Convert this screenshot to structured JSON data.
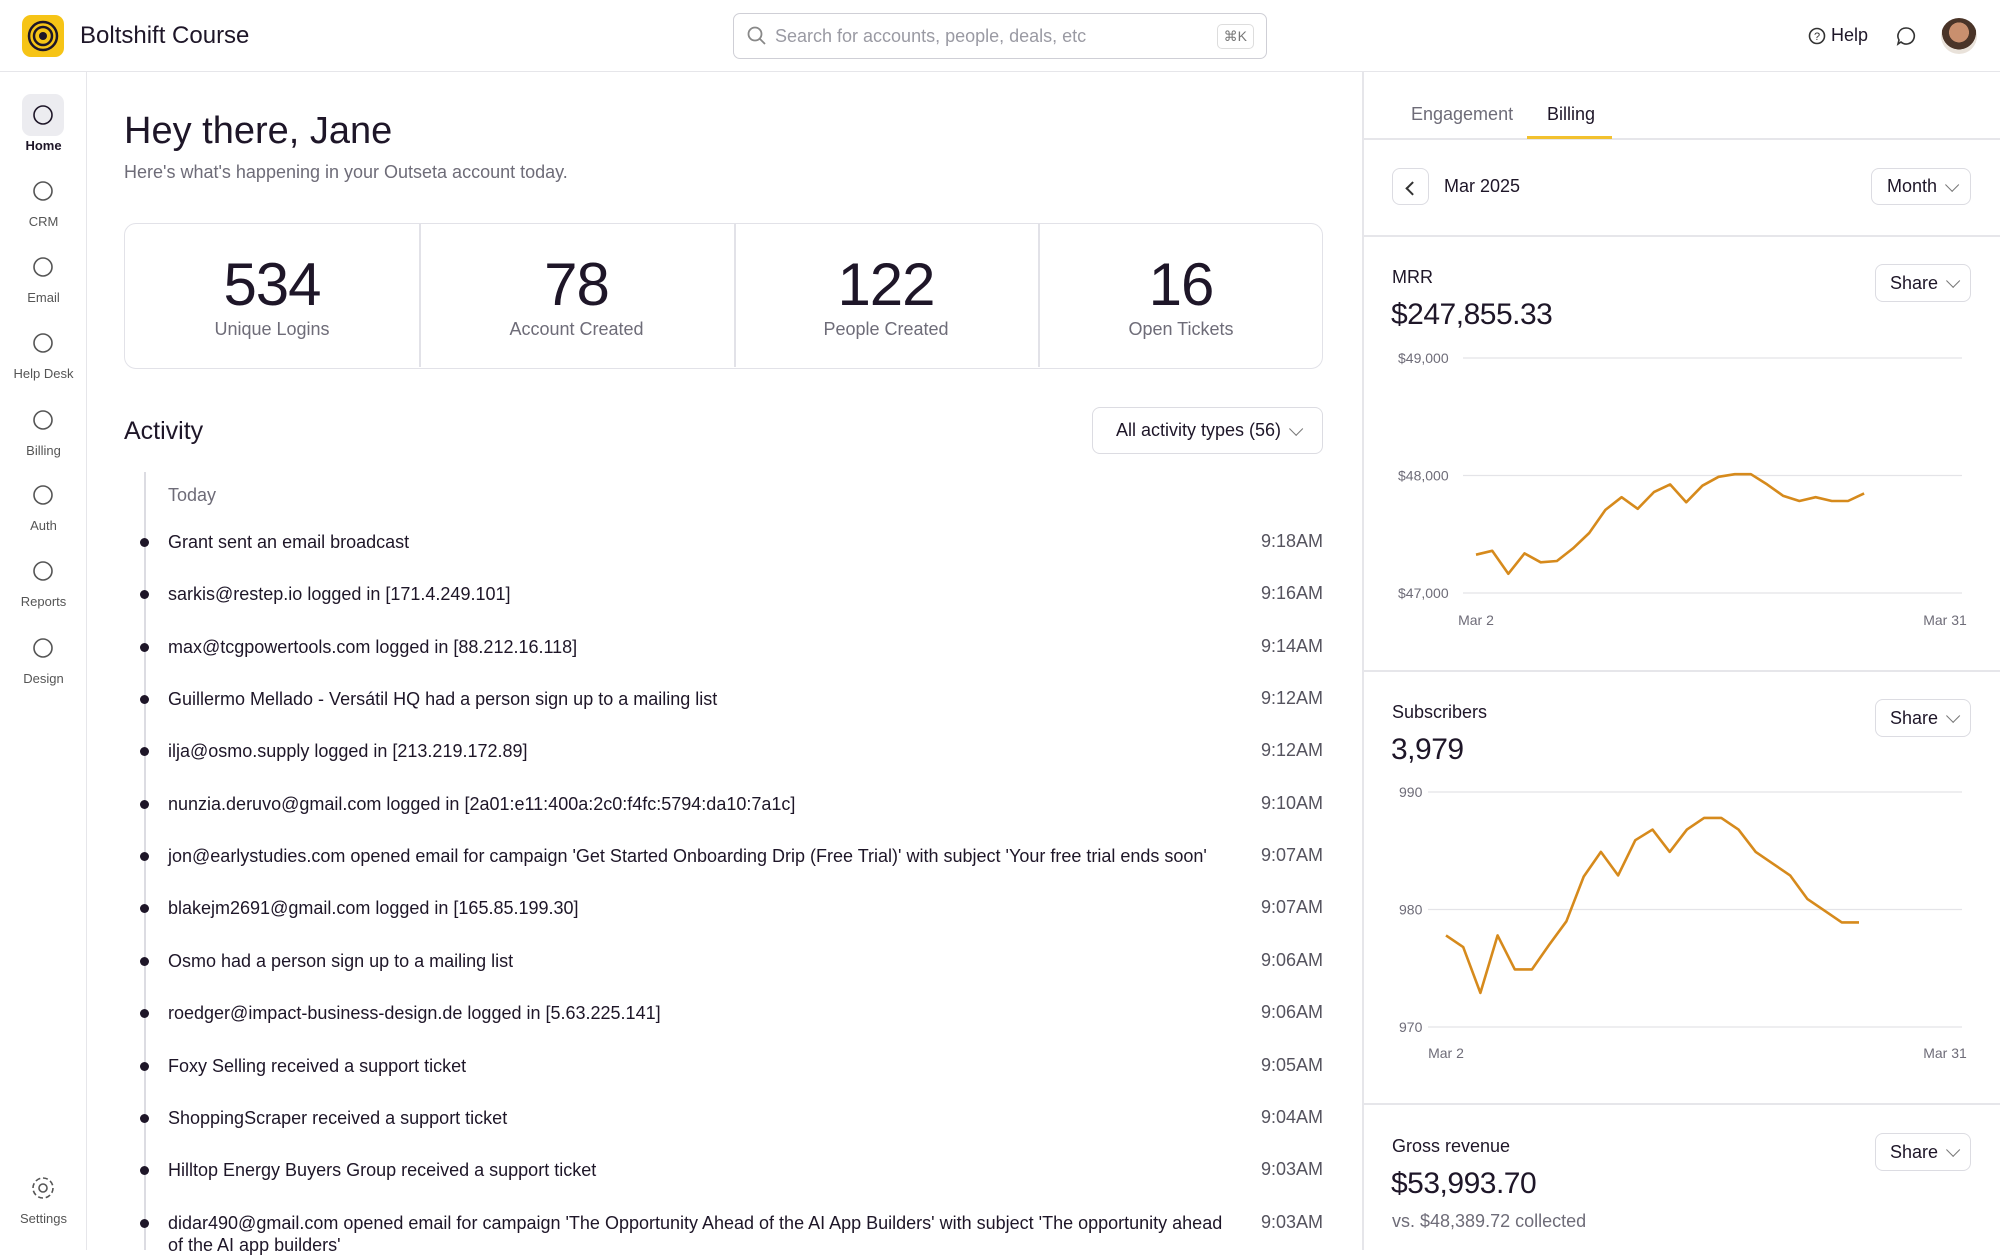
{
  "header": {
    "brand": "Boltshift Course",
    "search_placeholder": "Search for accounts, people, deals, etc",
    "shortcut": "⌘K",
    "help": "Help"
  },
  "nav": {
    "items": [
      "Home",
      "CRM",
      "Email",
      "Help Desk",
      "Billing",
      "Auth",
      "Reports",
      "Design"
    ],
    "settings": "Settings"
  },
  "greeting": {
    "title": "Hey there, Jane",
    "subtitle": "Here's what's happening in your Outseta account today."
  },
  "stats": [
    {
      "value": 534,
      "label": "Unique Logins"
    },
    {
      "value": 78,
      "label": "Account Created"
    },
    {
      "value": 122,
      "label": "People Created"
    },
    {
      "value": 16,
      "label": "Open Tickets"
    }
  ],
  "activity": {
    "title": "Activity",
    "filter": "All activity types (56)",
    "day": "Today",
    "items": [
      {
        "text": "Grant sent an email broadcast",
        "time": "9:18AM"
      },
      {
        "text": "sarkis@restep.io logged in [171.4.249.101]",
        "time": "9:16AM"
      },
      {
        "text": "max@tcgpowertools.com logged in [88.212.16.118]",
        "time": "9:14AM"
      },
      {
        "text": "Guillermo Mellado - Versátil HQ had a person sign up to a mailing list",
        "time": "9:12AM"
      },
      {
        "text": "ilja@osmo.supply logged in [213.219.172.89]",
        "time": "9:12AM"
      },
      {
        "text": "nunzia.deruvo@gmail.com logged in [2a01:e11:400a:2c0:f4fc:5794:da10:7a1c]",
        "time": "9:10AM"
      },
      {
        "text": "jon@earlystudies.com opened email for campaign 'Get Started Onboarding Drip (Free Trial)' with subject 'Your free trial ends soon'",
        "time": "9:07AM"
      },
      {
        "text": "blakejm2691@gmail.com logged in [165.85.199.30]",
        "time": "9:07AM"
      },
      {
        "text": "Osmo had a person sign up to a mailing list",
        "time": "9:06AM"
      },
      {
        "text": "roedger@impact-business-design.de logged in [5.63.225.141]",
        "time": "9:06AM"
      },
      {
        "text": "Foxy Selling received a support ticket",
        "time": "9:05AM"
      },
      {
        "text": "ShoppingScraper received a support ticket",
        "time": "9:04AM"
      },
      {
        "text": "Hilltop Energy Buyers Group received a support ticket",
        "time": "9:03AM"
      },
      {
        "text": "didar490@gmail.com opened email for campaign 'The Opportunity Ahead of the AI App Builders' with subject 'The opportunity ahead of the AI app builders'",
        "time": "9:03AM"
      }
    ]
  },
  "panel": {
    "tabs": [
      "Engagement",
      "Billing"
    ],
    "period": "Mar 2025",
    "period_select": "Month",
    "metrics": [
      {
        "name": "MRR",
        "value": "$247,855.33",
        "share": "Share"
      },
      {
        "name": "Subscribers",
        "value": "3,979",
        "share": "Share"
      },
      {
        "name": "Gross revenue",
        "value": "$53,993.70",
        "note": "vs. $48,389.72 collected",
        "share": "Share"
      }
    ]
  },
  "chart_data": [
    {
      "type": "line",
      "color": "#d68a1c",
      "grid": true,
      "categories": [
        "Mar 2",
        null,
        null,
        null,
        null,
        null,
        null,
        null,
        null,
        null,
        null,
        null,
        null,
        null,
        null,
        null,
        null,
        null,
        null,
        null,
        null,
        null,
        null,
        null,
        null,
        null,
        null,
        null,
        null,
        "Mar 31"
      ],
      "values": [
        47326,
        47359,
        47163,
        47337,
        47261,
        47272,
        47380,
        47511,
        47707,
        47815,
        47717,
        47859,
        47924,
        47772,
        47913,
        47989,
        48011,
        48011,
        47924,
        47826,
        47783,
        47815,
        47783,
        47783,
        47848,
        null,
        null,
        null,
        null,
        null
      ],
      "ylim": [
        47000,
        49000
      ],
      "yticks": [
        {
          "value": 47000,
          "label": "$47,000"
        },
        {
          "value": 48000,
          "label": "$48,000"
        },
        {
          "value": 49000,
          "label": "$49,000"
        }
      ]
    },
    {
      "type": "line",
      "color": "#d68a1c",
      "grid": true,
      "categories": [
        "Mar 2",
        null,
        null,
        null,
        null,
        null,
        null,
        null,
        null,
        null,
        null,
        null,
        null,
        null,
        null,
        null,
        null,
        null,
        null,
        null,
        null,
        null,
        null,
        null,
        null,
        null,
        null,
        null,
        null,
        "Mar 31"
      ],
      "values": [
        977.8,
        976.8,
        972.9,
        977.8,
        974.9,
        974.9,
        977,
        979,
        982.8,
        984.9,
        982.9,
        985.9,
        986.8,
        984.9,
        986.8,
        987.8,
        987.8,
        986.8,
        984.9,
        983.9,
        982.9,
        980.9,
        979.9,
        978.9,
        978.9,
        null,
        null,
        null,
        null,
        null
      ],
      "ylim": [
        970,
        990
      ],
      "yticks": [
        970,
        980,
        990
      ]
    }
  ]
}
